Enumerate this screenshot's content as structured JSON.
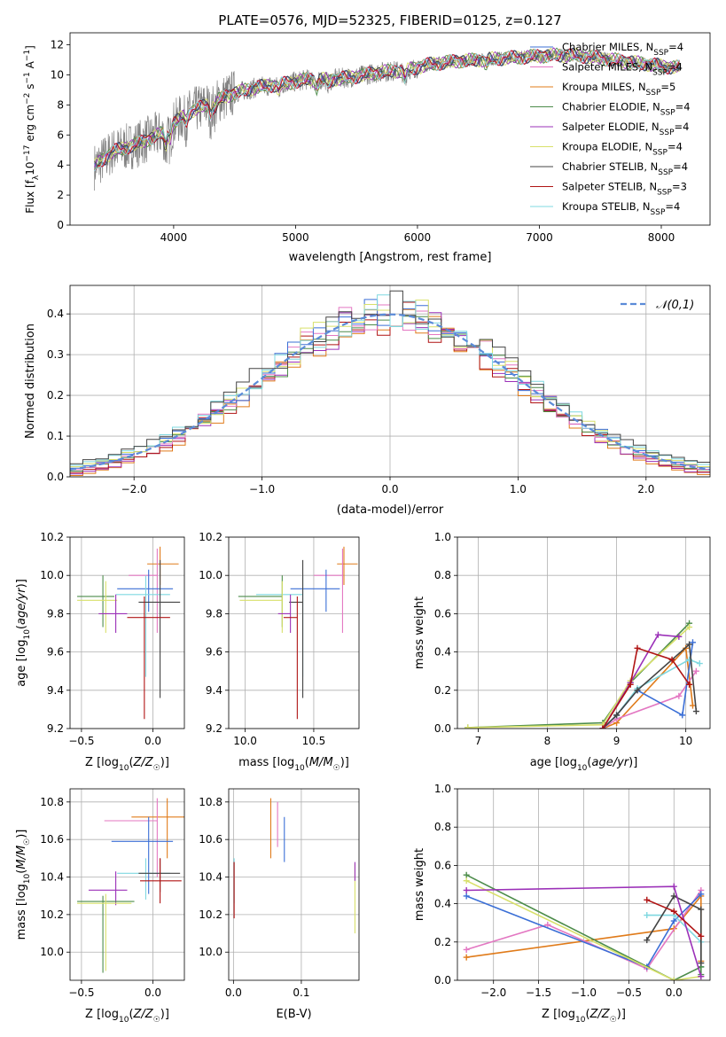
{
  "title": "PLATE=0576, MJD=52325, FIBERID=0125, z=0.127",
  "chart_data": [
    {
      "type": "line",
      "panel": "spectrum",
      "xlabel": "wavelength [Angstrom, rest frame]",
      "ylabel": "Flux [f_λ 10^-17 erg cm^-2 s^-1 A^-1]",
      "xlim": [
        3150,
        8400
      ],
      "ylim": [
        0,
        12.8
      ],
      "xticks": [
        4000,
        5000,
        6000,
        7000,
        8000
      ],
      "yticks": [
        0,
        2,
        4,
        6,
        8,
        10,
        12
      ],
      "grid": false,
      "legend_position": "top-right",
      "data_envelope": {
        "x": [
          3350,
          3500,
          3700,
          3900,
          4100,
          4300,
          4500,
          4700,
          4900,
          5100,
          5300,
          5500,
          5700,
          5900,
          6100,
          6300,
          6500,
          6700,
          6900,
          7100,
          7300,
          7500,
          7700,
          7900,
          8100
        ],
        "y": [
          3.9,
          4.9,
          5.4,
          6.1,
          7.4,
          8.1,
          8.8,
          9.2,
          9.4,
          9.7,
          9.7,
          9.9,
          10.2,
          10.3,
          10.7,
          10.9,
          11.0,
          11.1,
          11.2,
          11.3,
          11.3,
          11.1,
          10.9,
          10.7,
          10.5
        ]
      },
      "series": [
        {
          "name": "Chabrier MILES, N_SSP=4",
          "color": "#3b6fd6"
        },
        {
          "name": "Salpeter MILES, N_SSP=4",
          "color": "#e377c2"
        },
        {
          "name": "Kroupa MILES, N_SSP=5",
          "color": "#e07b1a"
        },
        {
          "name": "Chabrier ELODIE, N_SSP=4",
          "color": "#4c8c4a"
        },
        {
          "name": "Salpeter ELODIE, N_SSP=4",
          "color": "#9b30b8"
        },
        {
          "name": "Kroupa ELODIE, N_SSP=4",
          "color": "#d8e06a"
        },
        {
          "name": "Chabrier STELIB, N_SSP=4",
          "color": "#444444"
        },
        {
          "name": "Salpeter STELIB, N_SSP=3",
          "color": "#b01414"
        },
        {
          "name": "Kroupa STELIB, N_SSP=4",
          "color": "#7fd8e0"
        }
      ],
      "data_color": "#808080"
    },
    {
      "type": "line",
      "panel": "residual-histogram",
      "xlabel": "(data-model)/error",
      "ylabel": "Normed distribution",
      "xlim": [
        -2.5,
        2.5
      ],
      "ylim": [
        0,
        0.47
      ],
      "xticks": [
        -2,
        -1,
        0,
        1,
        2
      ],
      "yticks": [
        0.0,
        0.1,
        0.2,
        0.3,
        0.4
      ],
      "grid": true,
      "legend_position": "top-right",
      "legend": "N(0,1)",
      "gaussian_color": "#5b8bd8",
      "hist_colors": [
        "#e07b1a",
        "#9b30b8",
        "#b01414",
        "#4c8c4a",
        "#e377c2",
        "#3b6fd6",
        "#d8e06a",
        "#7fd8e0",
        "#444444"
      ]
    },
    {
      "type": "scatter",
      "panel": "age-vs-Z",
      "xlabel": "Z [log10(Z/Z☉)]",
      "ylabel": "age  [log10(age/yr)]",
      "xlim": [
        -0.58,
        0.22
      ],
      "ylim": [
        9.2,
        10.2
      ],
      "xticks": [
        -0.5,
        0.0
      ],
      "yticks": [
        9.2,
        9.4,
        9.6,
        9.8,
        10.0,
        10.2
      ],
      "grid": true,
      "points": [
        {
          "x": 0.05,
          "y": 10.06,
          "xerr": [
            0.09,
            0.13
          ],
          "yerr": [
            0.11,
            0.09
          ],
          "color": "#e07b1a"
        },
        {
          "x": 0.03,
          "y": 10.0,
          "xerr": [
            0.2,
            0.0
          ],
          "yerr": [
            0.3,
            0.14
          ],
          "color": "#e377c2"
        },
        {
          "x": -0.03,
          "y": 9.93,
          "xerr": [
            0.22,
            0.17
          ],
          "yerr": [
            0.12,
            0.1
          ],
          "color": "#3b6fd6"
        },
        {
          "x": -0.05,
          "y": 9.9,
          "xerr": [
            0.21,
            0.17
          ],
          "yerr": [
            0.43,
            0.1
          ],
          "color": "#7fd8e0"
        },
        {
          "x": -0.35,
          "y": 9.89,
          "xerr": [
            0.18,
            0.08
          ],
          "yerr": [
            0.16,
            0.11
          ],
          "color": "#4c8c4a"
        },
        {
          "x": -0.33,
          "y": 9.87,
          "xerr": [
            0.2,
            0.08
          ],
          "yerr": [
            0.17,
            0.1
          ],
          "color": "#d8e06a"
        },
        {
          "x": 0.05,
          "y": 9.86,
          "xerr": [
            0.15,
            0.14
          ],
          "yerr": [
            0.5,
            0.22
          ],
          "color": "#444444"
        },
        {
          "x": -0.26,
          "y": 9.8,
          "xerr": [
            0.12,
            0.08
          ],
          "yerr": [
            0.1,
            0.1
          ],
          "color": "#9b30b8"
        },
        {
          "x": -0.06,
          "y": 9.78,
          "xerr": [
            0.12,
            0.18
          ],
          "yerr": [
            0.53,
            0.11
          ],
          "color": "#b01414"
        }
      ]
    },
    {
      "type": "scatter",
      "panel": "age-vs-mass",
      "xlabel": "mass [log10(M/M☉)]",
      "ylabel": "",
      "xlim": [
        9.88,
        10.83
      ],
      "ylim": [
        9.2,
        10.2
      ],
      "xticks": [
        10.0,
        10.5
      ],
      "yticks": [
        9.2,
        9.4,
        9.6,
        9.8,
        10.0,
        10.2
      ],
      "grid": true,
      "points": [
        {
          "x": 10.72,
          "y": 10.06,
          "xerr": [
            0.05,
            0.1
          ],
          "yerr": [
            0.11,
            0.09
          ],
          "color": "#e07b1a"
        },
        {
          "x": 10.71,
          "y": 10.0,
          "xerr": [
            0.21,
            0.0
          ],
          "yerr": [
            0.3,
            0.14
          ],
          "color": "#e377c2"
        },
        {
          "x": 10.59,
          "y": 9.93,
          "xerr": [
            0.26,
            0.1
          ],
          "yerr": [
            0.12,
            0.1
          ],
          "color": "#3b6fd6"
        },
        {
          "x": 10.42,
          "y": 9.9,
          "xerr": [
            0.34,
            0.0
          ],
          "yerr": [
            0.43,
            0.1
          ],
          "color": "#7fd8e0"
        },
        {
          "x": 10.27,
          "y": 9.89,
          "xerr": [
            0.32,
            0.0
          ],
          "yerr": [
            0.16,
            0.11
          ],
          "color": "#4c8c4a"
        },
        {
          "x": 10.27,
          "y": 9.87,
          "xerr": [
            0.31,
            0.0
          ],
          "yerr": [
            0.17,
            0.1
          ],
          "color": "#d8e06a"
        },
        {
          "x": 10.42,
          "y": 9.86,
          "xerr": [
            0.1,
            0.0
          ],
          "yerr": [
            0.5,
            0.22
          ],
          "color": "#444444"
        },
        {
          "x": 10.33,
          "y": 9.8,
          "xerr": [
            0.09,
            0.0
          ],
          "yerr": [
            0.1,
            0.1
          ],
          "color": "#9b30b8"
        },
        {
          "x": 10.38,
          "y": 9.78,
          "xerr": [
            0.1,
            0.0
          ],
          "yerr": [
            0.53,
            0.11
          ],
          "color": "#b01414"
        }
      ]
    },
    {
      "type": "line",
      "panel": "mass-weight-vs-age",
      "xlabel": "age  [log10(age/yr)]",
      "ylabel": "mass weight",
      "xlim": [
        6.7,
        10.35
      ],
      "ylim": [
        0,
        1.0
      ],
      "xticks": [
        7,
        8,
        9,
        10
      ],
      "yticks": [
        0.0,
        0.2,
        0.4,
        0.6,
        0.8,
        1.0
      ],
      "grid": true,
      "series": [
        {
          "color": "#e07b1a",
          "x": [
            8.8,
            9.0,
            10.0,
            10.1
          ],
          "y": [
            0.0,
            0.03,
            0.42,
            0.12
          ]
        },
        {
          "color": "#e377c2",
          "x": [
            8.8,
            9.0,
            9.9,
            10.15
          ],
          "y": [
            0.0,
            0.05,
            0.17,
            0.3
          ]
        },
        {
          "color": "#3b6fd6",
          "x": [
            8.8,
            9.0,
            9.3,
            9.95,
            10.1
          ],
          "y": [
            0.0,
            0.07,
            0.2,
            0.07,
            0.45
          ]
        },
        {
          "color": "#7fd8e0",
          "x": [
            8.8,
            9.0,
            9.3,
            10.05,
            10.2
          ],
          "y": [
            0.0,
            0.07,
            0.21,
            0.36,
            0.34
          ]
        },
        {
          "color": "#4c8c4a",
          "x": [
            6.85,
            8.8,
            9.2,
            10.05
          ],
          "y": [
            0.005,
            0.03,
            0.24,
            0.55
          ]
        },
        {
          "color": "#d8e06a",
          "x": [
            6.85,
            8.8,
            9.2,
            10.05
          ],
          "y": [
            0.005,
            0.02,
            0.25,
            0.53
          ]
        },
        {
          "color": "#444444",
          "x": [
            8.8,
            9.0,
            9.3,
            10.05,
            10.15
          ],
          "y": [
            0.0,
            0.07,
            0.2,
            0.44,
            0.09
          ]
        },
        {
          "color": "#9b30b8",
          "x": [
            8.8,
            9.2,
            9.6,
            9.9
          ],
          "y": [
            0.0,
            0.24,
            0.49,
            0.48
          ]
        },
        {
          "color": "#b01414",
          "x": [
            8.8,
            9.2,
            9.3,
            9.8,
            10.05
          ],
          "y": [
            0.0,
            0.23,
            0.42,
            0.36,
            0.23
          ]
        }
      ]
    },
    {
      "type": "scatter",
      "panel": "mass-vs-Z",
      "xlabel": "Z [log10(Z/Z☉)]",
      "ylabel": "mass [log10(M/M☉)]",
      "xlim": [
        -0.58,
        0.22
      ],
      "ylim": [
        9.85,
        10.87
      ],
      "xticks": [
        -0.5,
        0.0
      ],
      "yticks": [
        10.0,
        10.2,
        10.4,
        10.6,
        10.8
      ],
      "grid": true,
      "points": [
        {
          "x": 0.1,
          "y": 10.72,
          "xerr": [
            0.25,
            0.15
          ],
          "yerr": [
            0.22,
            0.1
          ],
          "color": "#e07b1a"
        },
        {
          "x": 0.03,
          "y": 10.7,
          "xerr": [
            0.37,
            0.0
          ],
          "yerr": [
            0.3,
            0.12
          ],
          "color": "#e377c2"
        },
        {
          "x": -0.03,
          "y": 10.59,
          "xerr": [
            0.26,
            0.17
          ],
          "yerr": [
            0.28,
            0.13
          ],
          "color": "#3b6fd6"
        },
        {
          "x": -0.05,
          "y": 10.42,
          "xerr": [
            0.2,
            0.17
          ],
          "yerr": [
            0.14,
            0.08
          ],
          "color": "#7fd8e0"
        },
        {
          "x": 0.05,
          "y": 10.42,
          "xerr": [
            0.15,
            0.14
          ],
          "yerr": [
            0.1,
            0.08
          ],
          "color": "#444444"
        },
        {
          "x": 0.05,
          "y": 10.38,
          "xerr": [
            0.14,
            0.15
          ],
          "yerr": [
            0.12,
            0.12
          ],
          "color": "#b01414"
        },
        {
          "x": -0.26,
          "y": 10.33,
          "xerr": [
            0.19,
            0.08
          ],
          "yerr": [
            0.08,
            0.1
          ],
          "color": "#9b30b8"
        },
        {
          "x": -0.35,
          "y": 10.27,
          "xerr": [
            0.18,
            0.22
          ],
          "yerr": [
            0.38,
            0.03
          ],
          "color": "#4c8c4a"
        },
        {
          "x": -0.33,
          "y": 10.26,
          "xerr": [
            0.2,
            0.18
          ],
          "yerr": [
            0.36,
            0.05
          ],
          "color": "#d8e06a"
        }
      ]
    },
    {
      "type": "scatter",
      "panel": "mass-vs-EBV",
      "xlabel": "E(B-V)",
      "ylabel": "",
      "xlim": [
        -0.007,
        0.185
      ],
      "ylim": [
        9.85,
        10.87
      ],
      "xticks": [
        0.0,
        0.1
      ],
      "yticks": [
        10.0,
        10.2,
        10.4,
        10.6,
        10.8
      ],
      "grid": true,
      "points": [
        {
          "x": 0.055,
          "y": 10.66,
          "yerr": [
            0.16,
            0.16
          ],
          "color": "#e07b1a"
        },
        {
          "x": 0.065,
          "y": 10.68,
          "yerr": [
            0.12,
            0.12
          ],
          "color": "#e377c2"
        },
        {
          "x": 0.075,
          "y": 10.6,
          "yerr": [
            0.12,
            0.12
          ],
          "color": "#3b6fd6"
        },
        {
          "x": 0.001,
          "y": 10.38,
          "yerr": [
            0.12,
            0.12
          ],
          "color": "#7fd8e0"
        },
        {
          "x": 0.001,
          "y": 10.33,
          "yerr": [
            0.15,
            0.15
          ],
          "color": "#b01414"
        },
        {
          "x": 0.179,
          "y": 10.25,
          "yerr": [
            0.15,
            0.22
          ],
          "color": "#d8e06a"
        },
        {
          "x": 0.179,
          "y": 10.43,
          "yerr": [
            0.05,
            0.05
          ],
          "color": "#9b30b8"
        }
      ]
    },
    {
      "type": "line",
      "panel": "mass-weight-vs-Z",
      "xlabel": "Z [log10(Z/Z☉)]",
      "ylabel": "mass weight",
      "xlim": [
        -2.4,
        0.4
      ],
      "ylim": [
        0,
        1.0
      ],
      "xticks": [
        -2.0,
        -1.5,
        -1.0,
        -0.5,
        0.0
      ],
      "yticks": [
        0.0,
        0.2,
        0.4,
        0.6,
        0.8,
        1.0
      ],
      "grid": true,
      "series": [
        {
          "color": "#e07b1a",
          "x": [
            -2.3,
            0.0,
            0.3,
            0.3
          ],
          "y": [
            0.12,
            0.27,
            0.44,
            0.1
          ]
        },
        {
          "color": "#e377c2",
          "x": [
            -2.3,
            -1.4,
            -0.3,
            0.3
          ],
          "y": [
            0.16,
            0.29,
            0.06,
            0.47
          ]
        },
        {
          "color": "#3b6fd6",
          "x": [
            -2.3,
            -0.3,
            0.0,
            0.3
          ],
          "y": [
            0.44,
            0.07,
            0.31,
            0.45
          ]
        },
        {
          "color": "#7fd8e0",
          "x": [
            -0.3,
            0.0,
            0.3,
            0.3
          ],
          "y": [
            0.34,
            0.34,
            0.2,
            0.07
          ]
        },
        {
          "color": "#4c8c4a",
          "x": [
            -2.3,
            0.0,
            0.3,
            0.3
          ],
          "y": [
            0.55,
            0.0,
            0.07,
            0.03
          ]
        },
        {
          "color": "#d8e06a",
          "x": [
            -2.3,
            0.0,
            0.3
          ],
          "y": [
            0.52,
            0.0,
            0.02
          ]
        },
        {
          "color": "#444444",
          "x": [
            -0.3,
            0.0,
            0.3,
            0.3
          ],
          "y": [
            0.21,
            0.44,
            0.37,
            0.09
          ]
        },
        {
          "color": "#9b30b8",
          "x": [
            -2.3,
            0.0,
            0.3
          ],
          "y": [
            0.47,
            0.49,
            0.02
          ]
        },
        {
          "color": "#b01414",
          "x": [
            -0.3,
            0.0,
            0.3
          ],
          "y": [
            0.42,
            0.36,
            0.23
          ]
        }
      ]
    }
  ]
}
